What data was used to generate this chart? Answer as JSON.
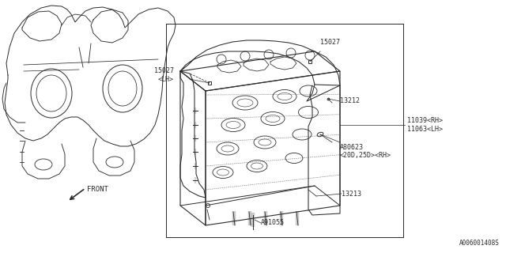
{
  "bg_color": "#ffffff",
  "line_color": "#2a2a2a",
  "fig_width": 6.4,
  "fig_height": 3.2,
  "dpi": 100,
  "labels": {
    "15027_LH": "15027\n<LH>",
    "15027": "15027",
    "13212": "13212",
    "11039_11063": "11039<RH>\n11063<LH>",
    "A80623": "A80623\n<20D,25D><RH>",
    "13213": "13213",
    "A91055": "A91055",
    "FRONT": "FRONT"
  },
  "diagram_code": "A006001408S"
}
